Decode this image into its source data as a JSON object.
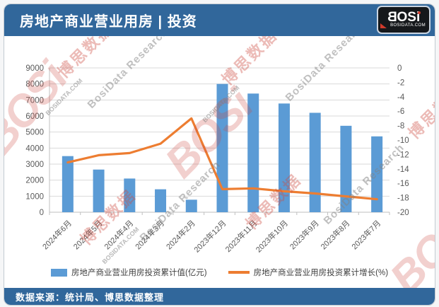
{
  "header": {
    "title": "房地产商业营业用房 | 投资",
    "logo": {
      "b": "B",
      "osi": "OSi",
      "domain": "BOSIDATA.COM"
    }
  },
  "footer": {
    "source_label": "数据来源：统计局、博思数据整理"
  },
  "watermark": {
    "brand": "BOSi",
    "cn": "博思数据",
    "en": "BosiData Research",
    "domain": "BOSIDATA.COM"
  },
  "colors": {
    "header_bar": "#31679B",
    "bar_series": "#5B9BD5",
    "line_series": "#ED7D31",
    "grid": "#D9D9D9",
    "axis_line": "#BFBFBF",
    "axis_text": "#595959"
  },
  "chart_data": {
    "type": "bar",
    "subtype": "bar+line dual axis",
    "categories": [
      "2024年6月",
      "2024年5月",
      "2024年4月",
      "2024年3月",
      "2024年2月",
      "2023年12月",
      "2023年11月",
      "2023年10月",
      "2023年9月",
      "2023年8月",
      "2023年7月"
    ],
    "series": [
      {
        "name": "房地产商业营业用房投资累计值(亿元)",
        "type": "bar",
        "axis": "left",
        "color": "#5B9BD5",
        "values": [
          3500,
          2660,
          2100,
          1430,
          780,
          8000,
          7400,
          6780,
          6200,
          5390,
          4730
        ]
      },
      {
        "name": "房地产商业营业用房投资累计增长(%)",
        "type": "line",
        "axis": "right",
        "color": "#ED7D31",
        "values": [
          -13.1,
          -12.1,
          -11.8,
          -10.5,
          -7.0,
          -16.8,
          -16.7,
          -17.1,
          -17.4,
          -17.8,
          -18.2
        ]
      }
    ],
    "left_axis": {
      "min": 0,
      "max": 9000,
      "step": 1000
    },
    "right_axis": {
      "min": -20,
      "max": 0,
      "step": 2
    },
    "grid": true,
    "legend_position": "bottom",
    "x_labels_rotation": -45
  }
}
